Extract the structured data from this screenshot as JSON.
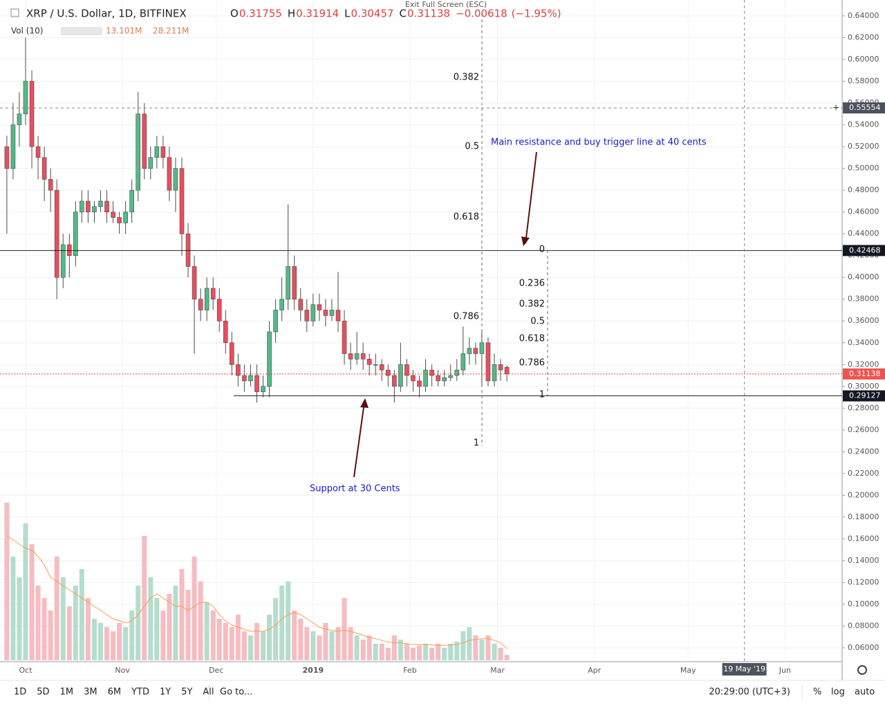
{
  "header": {
    "symbol": "XRP / U.S. Dollar, 1D, BITFINEX",
    "o": "O",
    "h": "H",
    "l": "L",
    "c": "C",
    "change": "−0.00618",
    "change_pct": "(−1.95%)",
    "vol_label": "Vol (10)",
    "vol_value": "13.101M",
    "vol_ma": "28.211M",
    "exit": "Exit Full Screen (ESC)"
  },
  "chart_data": {
    "type": "candlestick",
    "x": [
      -6,
      -4,
      -2,
      0,
      2,
      4,
      6,
      8,
      10,
      12,
      14,
      16,
      18,
      20,
      22,
      24,
      26,
      28,
      30,
      32,
      34,
      36,
      38,
      40,
      42,
      44,
      46,
      48,
      50,
      52,
      54,
      56,
      58,
      60,
      62,
      64,
      66,
      68,
      70,
      72,
      74,
      76,
      78,
      80,
      82,
      84,
      86,
      88,
      90,
      92,
      94,
      96,
      98,
      100,
      102,
      104,
      106,
      108,
      110,
      112,
      114,
      116,
      118,
      120,
      122,
      124,
      126,
      128,
      130,
      132,
      134,
      136,
      138,
      140,
      142,
      144,
      146,
      148,
      150,
      152,
      154
    ],
    "open": [
      0.52,
      0.5,
      0.54,
      0.55,
      0.58,
      0.52,
      0.51,
      0.49,
      0.48,
      0.4,
      0.43,
      0.42,
      0.46,
      0.47,
      0.46,
      0.465,
      0.47,
      0.46,
      0.455,
      0.45,
      0.46,
      0.48,
      0.55,
      0.5,
      0.51,
      0.52,
      0.51,
      0.48,
      0.5,
      0.44,
      0.41,
      0.38,
      0.37,
      0.39,
      0.38,
      0.36,
      0.34,
      0.32,
      0.31,
      0.305,
      0.31,
      0.295,
      0.3,
      0.35,
      0.37,
      0.38,
      0.41,
      0.38,
      0.37,
      0.36,
      0.375,
      0.37,
      0.365,
      0.37,
      0.36,
      0.33,
      0.325,
      0.33,
      0.325,
      0.32,
      0.32,
      0.315,
      0.31,
      0.3,
      0.32,
      0.31,
      0.305,
      0.3,
      0.315,
      0.31,
      0.305,
      0.308,
      0.31,
      0.315,
      0.33,
      0.335,
      0.33,
      0.34,
      0.305,
      0.32,
      0.31755
    ],
    "high": [
      0.53,
      0.56,
      0.57,
      0.62,
      0.59,
      0.53,
      0.52,
      0.5,
      0.49,
      0.44,
      0.44,
      0.47,
      0.48,
      0.48,
      0.47,
      0.48,
      0.48,
      0.47,
      0.46,
      0.47,
      0.49,
      0.57,
      0.56,
      0.52,
      0.53,
      0.53,
      0.52,
      0.51,
      0.51,
      0.45,
      0.42,
      0.39,
      0.4,
      0.4,
      0.39,
      0.37,
      0.35,
      0.33,
      0.32,
      0.32,
      0.32,
      0.31,
      0.36,
      0.38,
      0.4,
      0.467,
      0.42,
      0.39,
      0.38,
      0.385,
      0.385,
      0.38,
      0.38,
      0.405,
      0.37,
      0.34,
      0.35,
      0.34,
      0.33,
      0.33,
      0.325,
      0.32,
      0.315,
      0.34,
      0.325,
      0.315,
      0.31,
      0.325,
      0.32,
      0.315,
      0.315,
      0.32,
      0.325,
      0.355,
      0.345,
      0.34,
      0.35,
      0.345,
      0.33,
      0.325,
      0.31914
    ],
    "low": [
      0.44,
      0.49,
      0.52,
      0.54,
      0.5,
      0.49,
      0.47,
      0.46,
      0.38,
      0.39,
      0.4,
      0.41,
      0.45,
      0.45,
      0.45,
      0.46,
      0.45,
      0.45,
      0.44,
      0.44,
      0.45,
      0.47,
      0.49,
      0.49,
      0.5,
      0.5,
      0.47,
      0.46,
      0.42,
      0.4,
      0.33,
      0.36,
      0.36,
      0.37,
      0.35,
      0.33,
      0.31,
      0.3,
      0.295,
      0.3,
      0.285,
      0.29,
      0.29,
      0.34,
      0.36,
      0.37,
      0.37,
      0.36,
      0.35,
      0.355,
      0.36,
      0.355,
      0.36,
      0.35,
      0.32,
      0.315,
      0.32,
      0.315,
      0.31,
      0.31,
      0.305,
      0.3,
      0.285,
      0.295,
      0.3,
      0.295,
      0.29,
      0.295,
      0.3,
      0.3,
      0.3,
      0.305,
      0.305,
      0.31,
      0.32,
      0.32,
      0.3,
      0.3,
      0.3,
      0.305,
      0.30457
    ],
    "close": [
      0.5,
      0.54,
      0.55,
      0.58,
      0.52,
      0.51,
      0.49,
      0.48,
      0.4,
      0.43,
      0.42,
      0.46,
      0.47,
      0.46,
      0.465,
      0.47,
      0.46,
      0.455,
      0.45,
      0.46,
      0.48,
      0.55,
      0.5,
      0.51,
      0.52,
      0.51,
      0.48,
      0.5,
      0.44,
      0.41,
      0.38,
      0.37,
      0.39,
      0.38,
      0.36,
      0.34,
      0.32,
      0.31,
      0.305,
      0.31,
      0.295,
      0.3,
      0.35,
      0.37,
      0.38,
      0.41,
      0.38,
      0.37,
      0.36,
      0.375,
      0.37,
      0.365,
      0.37,
      0.36,
      0.33,
      0.325,
      0.33,
      0.325,
      0.32,
      0.32,
      0.315,
      0.31,
      0.3,
      0.32,
      0.31,
      0.305,
      0.3,
      0.315,
      0.31,
      0.305,
      0.308,
      0.31,
      0.315,
      0.33,
      0.335,
      0.33,
      0.34,
      0.305,
      0.32,
      0.315,
      0.31138
    ],
    "volume": [
      380,
      250,
      200,
      330,
      280,
      180,
      150,
      120,
      250,
      200,
      130,
      180,
      220,
      150,
      100,
      90,
      80,
      70,
      90,
      80,
      120,
      180,
      300,
      200,
      150,
      120,
      160,
      180,
      220,
      170,
      250,
      190,
      140,
      120,
      100,
      90,
      80,
      110,
      70,
      60,
      90,
      70,
      110,
      150,
      180,
      190,
      120,
      100,
      80,
      70,
      60,
      90,
      70,
      80,
      150,
      80,
      60,
      50,
      60,
      40,
      40,
      30,
      60,
      50,
      40,
      30,
      35,
      40,
      30,
      40,
      30,
      40,
      45,
      70,
      80,
      60,
      50,
      60,
      40,
      30,
      13.101
    ],
    "volume_ma": [
      300,
      290,
      280,
      270,
      265,
      250,
      230,
      200,
      190,
      180,
      170,
      160,
      150,
      140,
      130,
      120,
      110,
      100,
      95,
      90,
      95,
      110,
      130,
      150,
      160,
      150,
      140,
      130,
      130,
      120,
      130,
      140,
      140,
      130,
      110,
      95,
      85,
      80,
      75,
      70,
      70,
      70,
      75,
      85,
      100,
      110,
      115,
      110,
      100,
      90,
      80,
      75,
      72,
      70,
      72,
      70,
      65,
      60,
      55,
      52,
      48,
      44,
      42,
      42,
      40,
      38,
      37,
      38,
      37,
      36,
      36,
      37,
      38,
      42,
      48,
      50,
      52,
      52,
      48,
      42,
      28.211
    ],
    "up_color": "#53b987",
    "down_color": "#eb4d5c",
    "vol_up_color": "#b4ddcd",
    "vol_down_color": "#f5bcc1",
    "ma_color": "#ff9850",
    "ylim": [
      0.06,
      0.64
    ],
    "yticks": [
      {
        "value": 0.06,
        "label": "0.06000"
      },
      {
        "value": 0.08,
        "label": "0.08000"
      },
      {
        "value": 0.1,
        "label": "0.10000"
      },
      {
        "value": 0.12,
        "label": "0.12000"
      },
      {
        "value": 0.14,
        "label": "0.14000"
      },
      {
        "value": 0.16,
        "label": "0.16000"
      },
      {
        "value": 0.18,
        "label": "0.18000"
      },
      {
        "value": 0.2,
        "label": "0.20000"
      },
      {
        "value": 0.22,
        "label": "0.22000"
      },
      {
        "value": 0.24,
        "label": "0.24000"
      },
      {
        "value": 0.26,
        "label": "0.26000"
      },
      {
        "value": 0.28,
        "label": "0.28000"
      },
      {
        "value": 0.3,
        "label": "0.30000"
      },
      {
        "value": 0.32,
        "label": "0.32000"
      },
      {
        "value": 0.34,
        "label": "0.34000"
      },
      {
        "value": 0.36,
        "label": "0.36000"
      },
      {
        "value": 0.38,
        "label": "0.38000"
      },
      {
        "value": 0.4,
        "label": "0.40000"
      },
      {
        "value": 0.42,
        "label": "0.42000"
      },
      {
        "value": 0.44,
        "label": "0.44000"
      },
      {
        "value": 0.46,
        "label": "0.46000"
      },
      {
        "value": 0.48,
        "label": "0.48000"
      },
      {
        "value": 0.5,
        "label": "0.50000"
      },
      {
        "value": 0.52,
        "label": "0.52000"
      },
      {
        "value": 0.54,
        "label": "0.54000"
      },
      {
        "value": 0.56,
        "label": "0.56000"
      },
      {
        "value": 0.58,
        "label": "0.58000"
      },
      {
        "value": 0.6,
        "label": "0.60000"
      },
      {
        "value": 0.62,
        "label": "0.62000"
      },
      {
        "value": 0.64,
        "label": "0.64000"
      }
    ],
    "xticks": [
      {
        "value": 0,
        "label": "Oct"
      },
      {
        "value": 31,
        "label": "Nov"
      },
      {
        "value": 61,
        "label": "Dec"
      },
      {
        "value": 92,
        "label": "2019"
      },
      {
        "value": 123,
        "label": "Feb"
      },
      {
        "value": 151,
        "label": "Mar"
      },
      {
        "value": 182,
        "label": "Apr"
      },
      {
        "value": 212,
        "label": "May"
      },
      {
        "value": 243,
        "label": "Jun"
      }
    ],
    "grid": true,
    "resistance": 0.42468,
    "support": 0.29127,
    "last_price": 0.31138,
    "crosshair_price": 0.55554,
    "crosshair_x": {
      "value": 230,
      "label": "19 May '19"
    },
    "annotations": [
      "Main resistance and buy trigger line at 40 cents",
      "Support at 30 Cents"
    ],
    "fib_left": [
      "0.382",
      "0.5",
      "0.618",
      "0.786",
      "1"
    ],
    "fib_right": [
      "0",
      "0.236",
      "0.382",
      "0.5",
      "0.618",
      "0.786",
      "1"
    ]
  },
  "toolbar": {
    "ranges": [
      "1D",
      "5D",
      "1M",
      "3M",
      "6M",
      "YTD",
      "1Y",
      "5Y",
      "All"
    ],
    "goto": "Go to...",
    "time": "20:29:00 (UTC+3)",
    "pct": "%",
    "log": "log",
    "auto": "auto"
  }
}
